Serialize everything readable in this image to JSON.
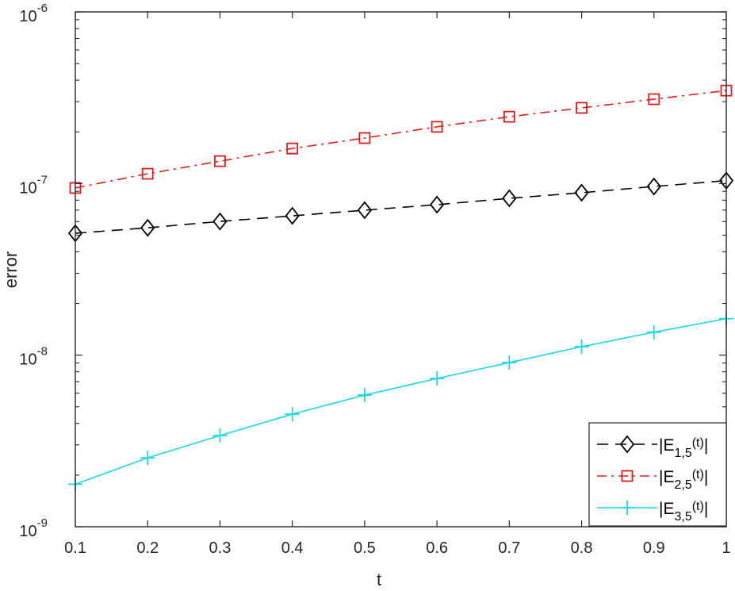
{
  "chart_data": {
    "type": "line",
    "title": "",
    "xlabel": "t",
    "ylabel": "error",
    "xlim": [
      0.1,
      1
    ],
    "ylim": [
      1e-09,
      1e-06
    ],
    "yscale": "log",
    "grid": false,
    "legend_position": "lower right",
    "x": [
      0.1,
      0.2,
      0.3,
      0.4,
      0.5,
      0.6,
      0.7,
      0.8,
      0.9,
      1.0
    ],
    "x_tick_labels": [
      "0.1",
      "0.2",
      "0.3",
      "0.4",
      "0.5",
      "0.6",
      "0.7",
      "0.8",
      "0.9",
      "1"
    ],
    "y_tick_labels": [
      {
        "base": "10",
        "exp": "-6",
        "value": 1e-06
      },
      {
        "base": "10",
        "exp": "-7",
        "value": 1e-07
      },
      {
        "base": "10",
        "exp": "-8",
        "value": 1e-08
      },
      {
        "base": "10",
        "exp": "-9",
        "value": 1e-09
      }
    ],
    "series": [
      {
        "name": "|E_{1,5}(t)|",
        "label_main": "|E",
        "label_sub": "1,5",
        "label_tail": "(t)|",
        "color": "#000000",
        "linestyle": "dashed",
        "marker": "diamond",
        "values": [
          5.13e-08,
          5.52e-08,
          6.01e-08,
          6.48e-08,
          6.99e-08,
          7.53e-08,
          8.2e-08,
          8.84e-08,
          9.61e-08,
          1.04e-07
        ]
      },
      {
        "name": "|E_{2,5}(t)|",
        "label_main": "|E",
        "label_sub": "2,5",
        "label_tail": "(t)|",
        "color": "#e41a1c",
        "linestyle": "dashdot",
        "marker": "square",
        "values": [
          9.42e-08,
          1.14e-07,
          1.35e-07,
          1.6e-07,
          1.84e-07,
          2.14e-07,
          2.45e-07,
          2.76e-07,
          3.1e-07,
          3.48e-07
        ]
      },
      {
        "name": "|E_{3,5}(t)|",
        "label_main": "|E",
        "label_sub": "3,5",
        "label_tail": "(t)|",
        "color": "#17d9e6",
        "linestyle": "solid",
        "marker": "plus",
        "values": [
          1.77e-09,
          2.52e-09,
          3.4e-09,
          4.53e-09,
          5.85e-09,
          7.31e-09,
          9.05e-09,
          1.12e-08,
          1.36e-08,
          1.63e-08
        ]
      }
    ]
  }
}
